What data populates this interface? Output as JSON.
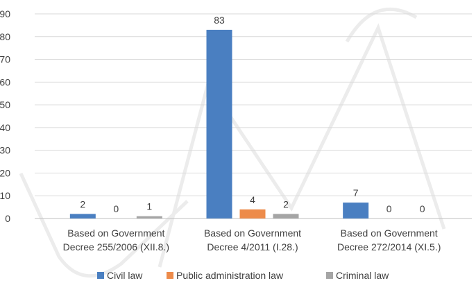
{
  "chart_data": {
    "type": "bar",
    "categories": [
      [
        "Based on Government",
        "Decree 255/2006 (XII.8.)"
      ],
      [
        "Based on Government",
        "Decree 4/2011 (I.28.)"
      ],
      [
        "Based on Government",
        "Decree 272/2014 (XI.5.)"
      ]
    ],
    "series": [
      {
        "name": "Civil law",
        "color": "#4a7fc1",
        "values": [
          2,
          83,
          7
        ]
      },
      {
        "name": "Public administration law",
        "color": "#ed8b4a",
        "values": [
          0,
          4,
          0
        ]
      },
      {
        "name": "Criminal law",
        "color": "#a5a5a5",
        "values": [
          1,
          2,
          0
        ]
      }
    ],
    "ylim": [
      0,
      90
    ],
    "yticks": [
      0,
      10,
      20,
      30,
      40,
      50,
      60,
      70,
      80,
      90
    ],
    "grid": true,
    "legend": "bottom",
    "data_labels": true,
    "watermark": [
      "U",
      "M",
      "C"
    ]
  }
}
